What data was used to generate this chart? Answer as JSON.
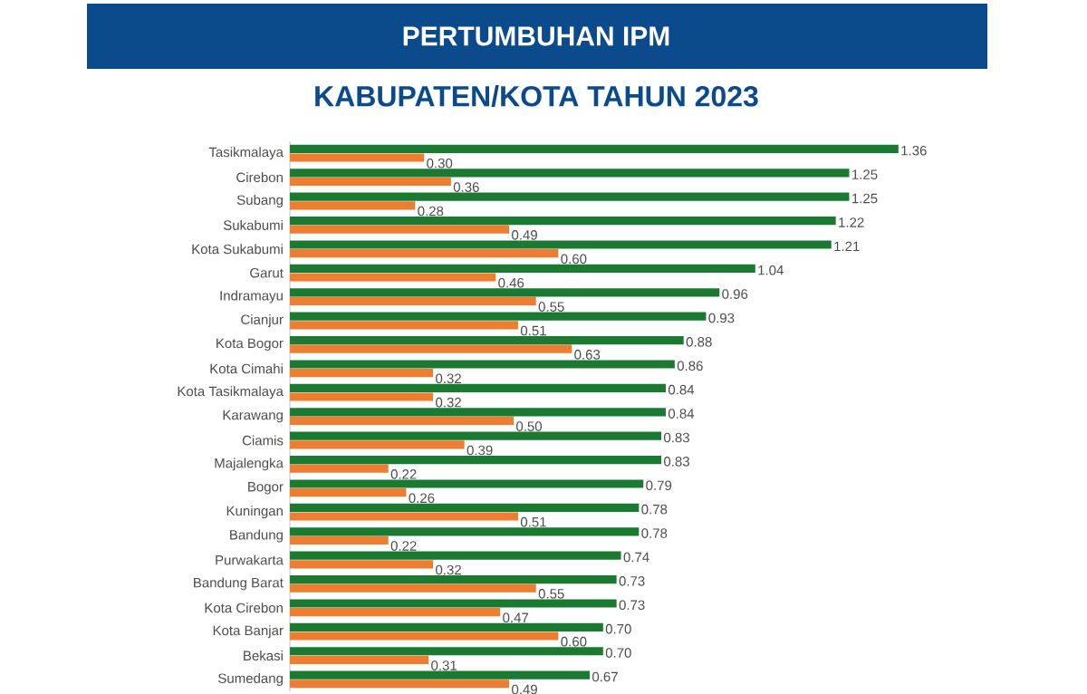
{
  "chart_data": {
    "type": "bar",
    "orientation": "horizontal",
    "title": "PERTUMBUHAN IPM",
    "subtitle": "KABUPATEN/KOTA TAHUN 2023",
    "categories": [
      "Tasikmalaya",
      "Cirebon",
      "Subang",
      "Sukabumi",
      "Kota Sukabumi",
      "Garut",
      "Indramayu",
      "Cianjur",
      "Kota Bogor",
      "Kota Cimahi",
      "Kota Tasikmalaya",
      "Karawang",
      "Ciamis",
      "Majalengka",
      "Bogor",
      "Kuningan",
      "Bandung",
      "Purwakarta",
      "Bandung Barat",
      "Kota Cirebon",
      "Kota Banjar",
      "Bekasi",
      "Sumedang"
    ],
    "series": [
      {
        "color": "#ed7d31",
        "values": [
          0.3,
          0.36,
          0.28,
          0.49,
          0.6,
          0.46,
          0.55,
          0.51,
          0.63,
          0.32,
          0.32,
          0.5,
          0.39,
          0.22,
          0.26,
          0.51,
          0.22,
          0.32,
          0.55,
          0.47,
          0.6,
          0.31,
          0.49
        ],
        "value_labels": [
          "0.30",
          "0.36",
          "0.28",
          "0.49",
          "0.60",
          "0.46",
          "0.55",
          "0.51",
          "0.63",
          "0.32",
          "0.32",
          "0.50",
          "0.39",
          "0.22",
          "0.26",
          "0.51",
          "0.22",
          "0.32",
          "0.55",
          "0.47",
          "0.60",
          "0.31",
          "0.49"
        ]
      },
      {
        "color": "#1a7a32",
        "values": [
          1.36,
          1.25,
          1.25,
          1.22,
          1.21,
          1.04,
          0.96,
          0.93,
          0.88,
          0.86,
          0.84,
          0.84,
          0.83,
          0.83,
          0.79,
          0.78,
          0.78,
          0.74,
          0.73,
          0.73,
          0.7,
          0.7,
          0.67
        ],
        "value_labels": [
          "1.36",
          "1.25",
          "1.25",
          "1.22",
          "1.21",
          "1.04",
          "0.96",
          "0.93",
          "0.88",
          "0.86",
          "0.84",
          "0.84",
          "0.83",
          "0.83",
          "0.79",
          "0.78",
          "0.78",
          "0.74",
          "0.73",
          "0.73",
          "0.70",
          "0.70",
          "0.67"
        ]
      }
    ]
  }
}
